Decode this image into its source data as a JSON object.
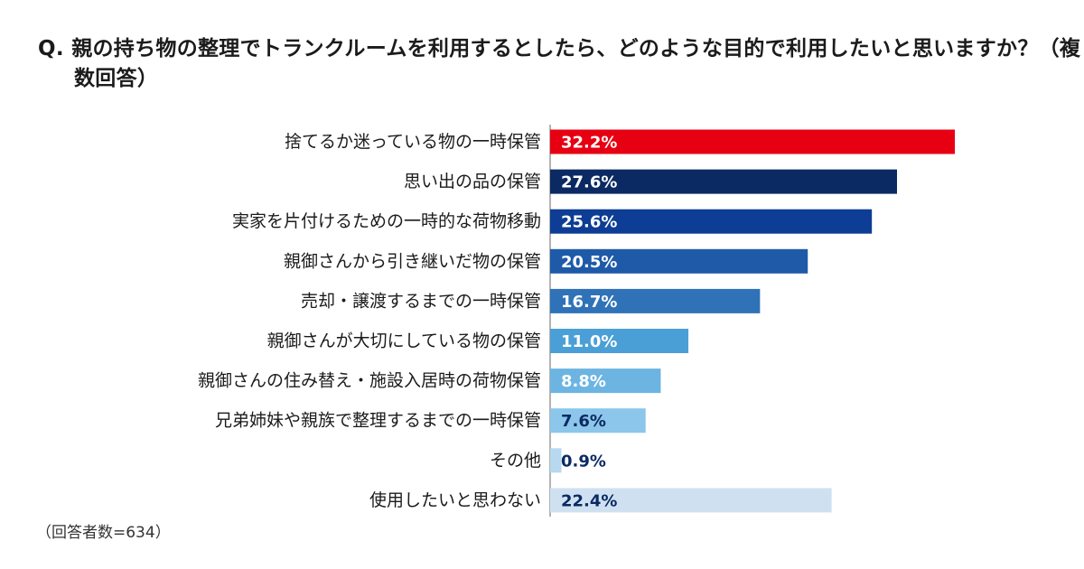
{
  "question": "Q. 親の持ち物の整理でトランクルームを利用するとしたら、どのような目的で利用したいと思いますか？（複数回答）",
  "note": "（回答者数=634）",
  "chart_data": {
    "type": "bar",
    "orientation": "horizontal",
    "title": "Q. 親の持ち物の整理でトランクルームを利用するとしたら、どのような目的で利用したいと思いますか？（複数回答）",
    "categories": [
      "捨てるか迷っている物の一時保管",
      "思い出の品の保管",
      "実家を片付けるための一時的な荷物移動",
      "親御さんから引き継いだ物の保管",
      "売却・譲渡するまでの一時保管",
      "親御さんが大切にしている物の保管",
      "親御さんの住み替え・施設入居時の荷物保管",
      "兄弟姉妹や親族で整理するまでの一時保管",
      "その他",
      "使用したいと思わない"
    ],
    "values": [
      32.2,
      27.6,
      25.6,
      20.5,
      16.7,
      11.0,
      8.8,
      7.6,
      0.9,
      22.4
    ],
    "value_labels": [
      "32.2%",
      "27.6%",
      "25.6%",
      "20.5%",
      "16.7%",
      "11.0%",
      "8.8%",
      "7.6%",
      "0.9%",
      "22.4%"
    ],
    "unit": "%",
    "xlim": [
      0,
      40
    ],
    "grid": false,
    "bar_colors": [
      "#e60012",
      "#0b2a63",
      "#0d3d94",
      "#1e5aa8",
      "#2f72b8",
      "#4a9fd6",
      "#6cb4e2",
      "#8cc6ea",
      "#b7d8ee",
      "#cfe1f1"
    ],
    "label_colors": [
      "#ffffff",
      "#ffffff",
      "#ffffff",
      "#ffffff",
      "#ffffff",
      "#ffffff",
      "#ffffff",
      "#0b2a63",
      "#0b2a63",
      "#0b2a63"
    ],
    "label_inside": [
      true,
      true,
      true,
      true,
      true,
      true,
      true,
      true,
      false,
      true
    ]
  }
}
